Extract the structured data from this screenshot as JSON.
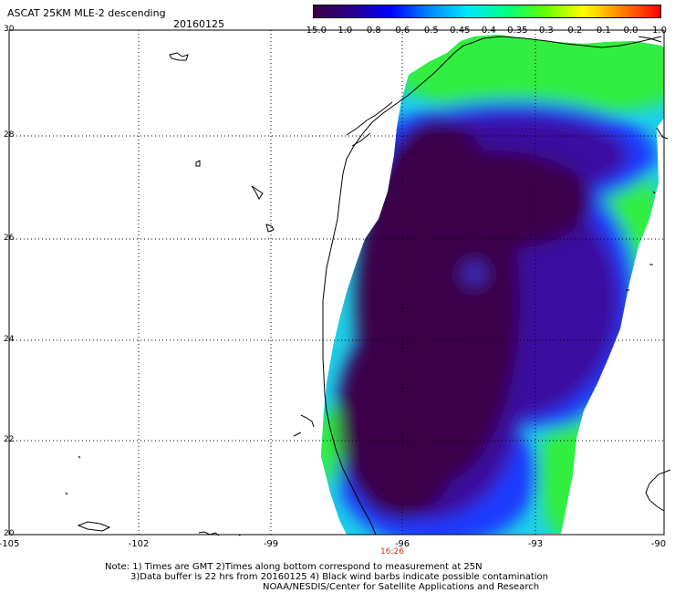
{
  "title": "ASCAT 25KM MLE-2 descending",
  "date": "20160125",
  "colorbar": {
    "ticks": [
      "-15.0",
      "-1.0",
      "-0.8",
      "-0.6",
      "-0.5",
      "-0.45",
      "-0.4",
      "-0.35",
      "-0.3",
      "-0.2",
      "-0.1",
      "0.0",
      "1.0"
    ],
    "colors": [
      "#3a0040",
      "#2a0090",
      "#0000ff",
      "#0088ff",
      "#00e8ff",
      "#00ff80",
      "#60ff00",
      "#ffff00",
      "#ff8000",
      "#ff0000"
    ]
  },
  "map": {
    "lat_labels": [
      "30",
      "28",
      "26",
      "24",
      "22",
      "20"
    ],
    "lon_labels": [
      "-105",
      "-102",
      "-99",
      "-96",
      "-93",
      "-90"
    ],
    "time_marker": "16:26"
  },
  "notes": [
    "Note: 1) Times are GMT 2)Times along bottom correspond to measurement at 25N",
    "3)Data buffer is 22 hrs from 20160125 4) Black wind barbs indicate possible contamination",
    "NOAA/NESDIS/Center for Satellite Applications and Research"
  ]
}
